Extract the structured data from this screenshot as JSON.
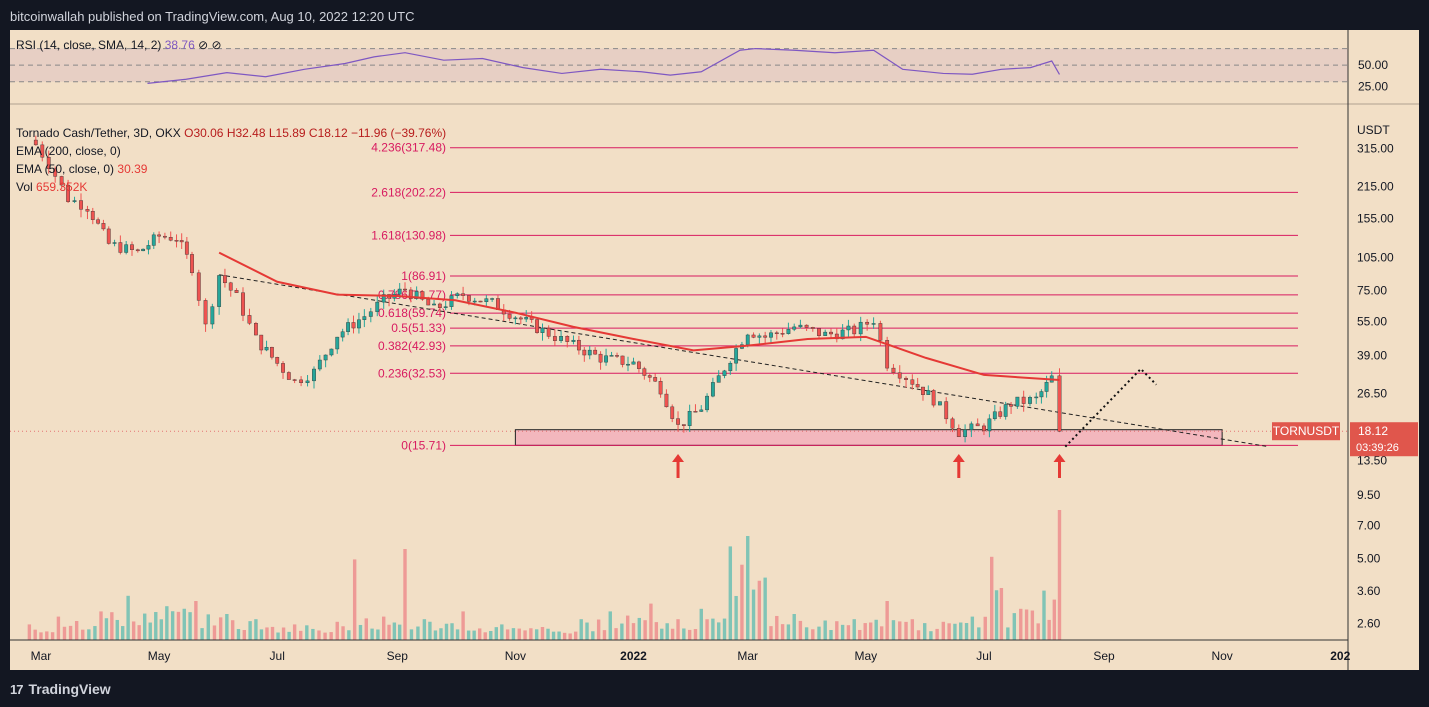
{
  "header": {
    "publisher": "bitcoinwallah published on TradingView.com, Aug 10, 2022 12:20 UTC"
  },
  "footer": {
    "brand": "TradingView",
    "logo_glyph": "17"
  },
  "rsi": {
    "label": "RSI (14, close, SMA, 14, 2)",
    "value": "38.76",
    "symbols": "⊘ ⊘",
    "ticks": [
      "50.00",
      "25.00"
    ]
  },
  "legend": {
    "title": "Tornado Cash/Tether, 3D, OKX",
    "open": "O30.06",
    "high": "H32.48",
    "low": "L15.89",
    "close": "C18.12",
    "change": "−11.96 (−39.76%)",
    "ema200": "EMA (200, close, 0)",
    "ema50": "EMA (50, close, 0)",
    "ema50_value": "30.39",
    "vol": "Vol",
    "vol_value": "659.352K"
  },
  "price_axis": {
    "currency": "USDT",
    "ticks": [
      "315.00",
      "215.00",
      "155.00",
      "105.00",
      "75.00",
      "55.00",
      "39.00",
      "26.50",
      "13.50",
      "9.50",
      "7.00",
      "5.00",
      "3.60",
      "2.60"
    ]
  },
  "time_axis": {
    "labels": [
      "Mar",
      "May",
      "Jul",
      "Sep",
      "Nov",
      "2022",
      "Mar",
      "May",
      "Jul",
      "Sep",
      "Nov",
      "202"
    ]
  },
  "ticker": {
    "symbol": "TORNUSDT",
    "price": "18.12",
    "countdown": "03:39:26"
  },
  "colors": {
    "up": "#26a69a",
    "down": "#ef5350",
    "fib": "#d81b60",
    "ema": "#e53935",
    "rsi": "#7e57c2",
    "zone": "#f3b7bd"
  },
  "chart_data": {
    "type": "candlestick",
    "title": "Tornado Cash/Tether, 3D, OKX",
    "scale": "log",
    "ylim": [
      2.2,
      420
    ],
    "xrange": [
      "2021-02-13",
      "2023-01-05"
    ],
    "fib_levels": [
      {
        "label": "4.236(317.48)",
        "value": 317.48
      },
      {
        "label": "2.618(202.22)",
        "value": 202.22
      },
      {
        "label": "1.618(130.98)",
        "value": 130.98
      },
      {
        "label": "1(86.91)",
        "value": 86.91
      },
      {
        "label": "0.786(71.77)",
        "value": 71.77
      },
      {
        "label": "0.618(59.74)",
        "value": 59.74
      },
      {
        "label": "0.5(51.33)",
        "value": 51.33
      },
      {
        "label": "0.382(42.93)",
        "value": 42.93
      },
      {
        "label": "0.236(32.53)",
        "value": 32.53
      },
      {
        "label": "0(15.71)",
        "value": 15.71
      }
    ],
    "support_zone": {
      "low": 15.71,
      "high": 18.4,
      "from": "2021-11-01",
      "to": "2022-11-01"
    },
    "arrows": [
      "2022-01-24",
      "2022-06-18",
      "2022-08-09"
    ],
    "prices": [
      [
        "2021-02-23",
        360
      ],
      [
        "2021-03-05",
        270
      ],
      [
        "2021-03-15",
        190
      ],
      [
        "2021-03-25",
        175
      ],
      [
        "2021-04-05",
        120
      ],
      [
        "2021-04-20",
        110
      ],
      [
        "2021-05-01",
        130
      ],
      [
        "2021-05-10",
        128
      ],
      [
        "2021-05-18",
        95
      ],
      [
        "2021-05-25",
        52
      ],
      [
        "2021-06-01",
        88
      ],
      [
        "2021-06-10",
        70
      ],
      [
        "2021-06-20",
        46
      ],
      [
        "2021-07-01",
        36
      ],
      [
        "2021-07-10",
        30
      ],
      [
        "2021-07-20",
        33
      ],
      [
        "2021-08-01",
        48
      ],
      [
        "2021-08-15",
        58
      ],
      [
        "2021-08-25",
        68
      ],
      [
        "2021-09-05",
        76
      ],
      [
        "2021-09-20",
        62
      ],
      [
        "2021-10-05",
        72
      ],
      [
        "2021-10-20",
        66
      ],
      [
        "2021-11-01",
        58
      ],
      [
        "2021-11-15",
        50
      ],
      [
        "2021-12-01",
        43
      ],
      [
        "2021-12-15",
        38
      ],
      [
        "2022-01-01",
        36
      ],
      [
        "2022-01-15",
        28
      ],
      [
        "2022-01-24",
        19
      ],
      [
        "2022-02-05",
        23
      ],
      [
        "2022-02-20",
        38
      ],
      [
        "2022-03-01",
        50
      ],
      [
        "2022-03-10",
        47
      ],
      [
        "2022-03-25",
        52
      ],
      [
        "2022-04-10",
        48
      ],
      [
        "2022-04-25",
        50
      ],
      [
        "2022-05-05",
        56
      ],
      [
        "2022-05-12",
        36
      ],
      [
        "2022-05-25",
        30
      ],
      [
        "2022-06-05",
        25
      ],
      [
        "2022-06-18",
        18
      ],
      [
        "2022-07-01",
        19
      ],
      [
        "2022-07-15",
        24
      ],
      [
        "2022-07-28",
        25
      ],
      [
        "2022-08-05",
        31
      ],
      [
        "2022-08-09",
        18.12
      ]
    ],
    "ema50": [
      [
        "2021-06-01",
        110
      ],
      [
        "2021-07-01",
        82
      ],
      [
        "2021-08-01",
        72
      ],
      [
        "2021-09-01",
        71
      ],
      [
        "2021-10-01",
        68
      ],
      [
        "2021-11-01",
        60
      ],
      [
        "2021-12-01",
        52
      ],
      [
        "2022-01-01",
        46
      ],
      [
        "2022-02-01",
        41
      ],
      [
        "2022-03-01",
        43
      ],
      [
        "2022-04-01",
        46
      ],
      [
        "2022-05-01",
        47
      ],
      [
        "2022-06-01",
        38
      ],
      [
        "2022-07-01",
        32
      ],
      [
        "2022-08-09",
        30.39
      ]
    ],
    "projection": [
      [
        "2022-08-12",
        15.5
      ],
      [
        "2022-09-20",
        34
      ],
      [
        "2022-09-28",
        29
      ]
    ],
    "trendline": [
      [
        "2021-06-01",
        88
      ],
      [
        "2022-11-25",
        15.5
      ]
    ],
    "volume": [
      [
        "2021-02-23",
        0.12
      ],
      [
        "2021-03-10",
        0.18
      ],
      [
        "2021-04-01",
        0.22
      ],
      [
        "2021-04-15",
        0.34
      ],
      [
        "2021-05-05",
        0.26
      ],
      [
        "2021-05-20",
        0.3
      ],
      [
        "2021-06-05",
        0.2
      ],
      [
        "2021-06-20",
        0.16
      ],
      [
        "2021-07-10",
        0.12
      ],
      [
        "2021-08-01",
        0.14
      ],
      [
        "2021-08-10",
        0.62
      ],
      [
        "2021-08-25",
        0.18
      ],
      [
        "2021-09-05",
        0.7
      ],
      [
        "2021-09-15",
        0.16
      ],
      [
        "2021-10-05",
        0.22
      ],
      [
        "2021-10-25",
        0.12
      ],
      [
        "2021-11-15",
        0.1
      ],
      [
        "2021-12-05",
        0.16
      ],
      [
        "2021-12-20",
        0.22
      ],
      [
        "2022-01-10",
        0.28
      ],
      [
        "2022-01-24",
        0.16
      ],
      [
        "2022-02-05",
        0.24
      ],
      [
        "2022-02-20",
        0.72
      ],
      [
        "2022-03-01",
        0.8
      ],
      [
        "2022-03-10",
        0.48
      ],
      [
        "2022-03-25",
        0.2
      ],
      [
        "2022-04-10",
        0.15
      ],
      [
        "2022-04-25",
        0.16
      ],
      [
        "2022-05-12",
        0.3
      ],
      [
        "2022-05-25",
        0.16
      ],
      [
        "2022-06-10",
        0.14
      ],
      [
        "2022-06-25",
        0.18
      ],
      [
        "2022-07-05",
        0.64
      ],
      [
        "2022-07-10",
        0.4
      ],
      [
        "2022-07-20",
        0.24
      ],
      [
        "2022-08-01",
        0.38
      ],
      [
        "2022-08-09",
        1.0
      ]
    ],
    "rsi": [
      [
        "2021-04-25",
        28
      ],
      [
        "2021-05-15",
        33
      ],
      [
        "2021-06-05",
        41
      ],
      [
        "2021-06-25",
        36
      ],
      [
        "2021-07-15",
        45
      ],
      [
        "2021-08-05",
        52
      ],
      [
        "2021-08-20",
        60
      ],
      [
        "2021-09-05",
        65
      ],
      [
        "2021-09-25",
        56
      ],
      [
        "2021-10-15",
        58
      ],
      [
        "2021-11-05",
        47
      ],
      [
        "2021-11-25",
        40
      ],
      [
        "2021-12-15",
        45
      ],
      [
        "2022-01-05",
        42
      ],
      [
        "2022-01-20",
        38
      ],
      [
        "2022-02-05",
        42
      ],
      [
        "2022-02-25",
        68
      ],
      [
        "2022-03-05",
        70
      ],
      [
        "2022-03-25",
        68
      ],
      [
        "2022-04-15",
        65
      ],
      [
        "2022-05-05",
        68
      ],
      [
        "2022-05-20",
        45
      ],
      [
        "2022-06-10",
        40
      ],
      [
        "2022-06-25",
        39
      ],
      [
        "2022-07-10",
        45
      ],
      [
        "2022-07-25",
        47
      ],
      [
        "2022-08-05",
        55
      ],
      [
        "2022-08-09",
        38.76
      ]
    ]
  }
}
